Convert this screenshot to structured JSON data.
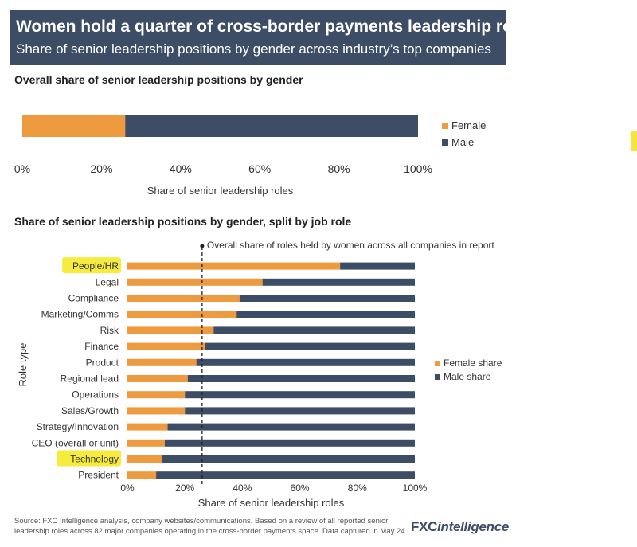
{
  "header": {
    "title": "Women hold a quarter of cross-border payments leadership roles",
    "subtitle": "Share of senior leadership positions by gender across industry’s top companies"
  },
  "colors": {
    "female": "#ee9b3f",
    "male": "#3d4d66",
    "highlight": "#f7ec3e",
    "header_bg": "#3d4d66"
  },
  "chart_data": [
    {
      "type": "bar",
      "orientation": "horizontal",
      "stacked": true,
      "title": "Overall share of senior leadership positions by gender",
      "xlabel": "Share of senior leadership roles",
      "xlim": [
        0,
        100
      ],
      "xticks": [
        "0%",
        "20%",
        "40%",
        "60%",
        "80%",
        "100%"
      ],
      "legend_position": "right",
      "series": [
        {
          "name": "Female",
          "values": [
            26
          ]
        },
        {
          "name": "Male",
          "values": [
            74
          ]
        }
      ]
    },
    {
      "type": "bar",
      "orientation": "horizontal",
      "stacked": true,
      "title": "Share of senior leadership positions by gender, split by job role",
      "xlabel": "Share of senior leadership roles",
      "ylabel": "Role type",
      "xlim": [
        0,
        100
      ],
      "xticks": [
        "0%",
        "20%",
        "40%",
        "60%",
        "80%",
        "100%"
      ],
      "legend_position": "right",
      "reference_line": {
        "value": 26,
        "label": "Overall share of roles held by women across all companies in report"
      },
      "highlighted_categories": [
        "People/HR",
        "Technology"
      ],
      "categories": [
        "People/HR",
        "Legal",
        "Compliance",
        "Marketing/Comms",
        "Risk",
        "Finance",
        "Product",
        "Regional lead",
        "Operations",
        "Sales/Growth",
        "Strategy/Innovation",
        "CEO (overall or unit)",
        "Technology",
        "President"
      ],
      "series": [
        {
          "name": "Female share",
          "values": [
            74,
            47,
            39,
            38,
            30,
            27,
            24,
            21,
            20,
            20,
            14,
            13,
            12,
            10
          ]
        },
        {
          "name": "Male share",
          "values": [
            26,
            53,
            61,
            62,
            70,
            73,
            76,
            79,
            80,
            80,
            86,
            87,
            88,
            90
          ]
        }
      ]
    }
  ],
  "footer": {
    "source": "Source: FXC Intelligence analysis, company websites/communications. Based on a review of all reported senior leadership roles across 82 major companies operating in the cross-border payments space. Data captured in May 24.",
    "logo_fxc": "FXC",
    "logo_intelligence": "intelligence"
  }
}
